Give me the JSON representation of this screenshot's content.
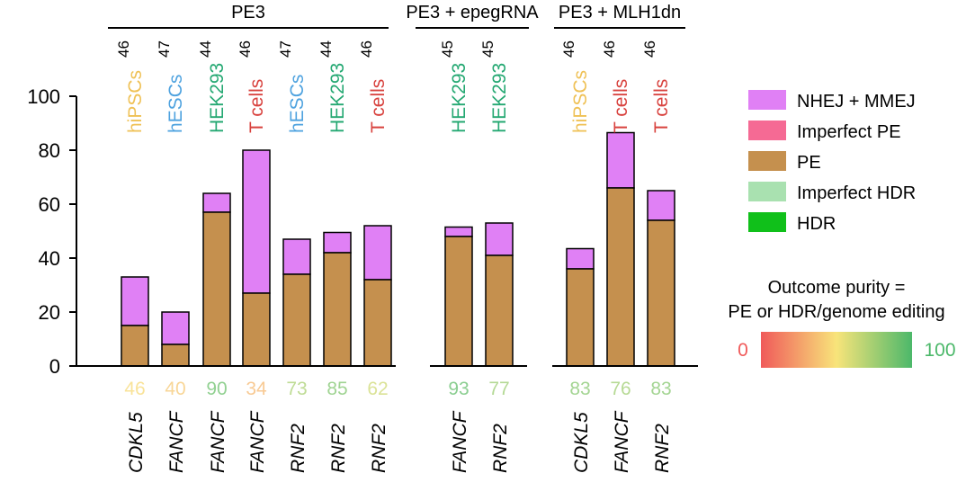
{
  "chart_data": {
    "type": "bar",
    "stacked": true,
    "ylim": [
      0,
      100
    ],
    "yticks": [
      0,
      20,
      40,
      60,
      80,
      100
    ],
    "groups": [
      {
        "label": "PE3"
      },
      {
        "label": "PE3 + epegRNA"
      },
      {
        "label": "PE3 + MLH1dn"
      }
    ],
    "bars": [
      {
        "group": 0,
        "gene": "CDKL5",
        "cell": "hiPSCs",
        "n": "46",
        "purity": "46",
        "pe": 15,
        "nhej": 18
      },
      {
        "group": 0,
        "gene": "FANCF",
        "cell": "hESCs",
        "n": "47",
        "purity": "40",
        "pe": 8,
        "nhej": 12
      },
      {
        "group": 0,
        "gene": "FANCF",
        "cell": "HEK293",
        "n": "44",
        "purity": "90",
        "pe": 57,
        "nhej": 7
      },
      {
        "group": 0,
        "gene": "FANCF",
        "cell": "T cells",
        "n": "46",
        "purity": "34",
        "pe": 27,
        "nhej": 53
      },
      {
        "group": 0,
        "gene": "RNF2",
        "cell": "hESCs",
        "n": "47",
        "purity": "73",
        "pe": 34,
        "nhej": 13
      },
      {
        "group": 0,
        "gene": "RNF2",
        "cell": "HEK293",
        "n": "44",
        "purity": "85",
        "pe": 42,
        "nhej": 7.5
      },
      {
        "group": 0,
        "gene": "RNF2",
        "cell": "T cells",
        "n": "46",
        "purity": "62",
        "pe": 32,
        "nhej": 20
      },
      {
        "group": 1,
        "gene": "FANCF",
        "cell": "HEK293",
        "n": "45",
        "purity": "93",
        "pe": 48,
        "nhej": 3.5
      },
      {
        "group": 1,
        "gene": "RNF2",
        "cell": "HEK293",
        "n": "45",
        "purity": "77",
        "pe": 41,
        "nhej": 12
      },
      {
        "group": 2,
        "gene": "CDKL5",
        "cell": "hiPSCs",
        "n": "46",
        "purity": "83",
        "pe": 36,
        "nhej": 7.5
      },
      {
        "group": 2,
        "gene": "FANCF",
        "cell": "T cells",
        "n": "46",
        "purity": "76",
        "pe": 66,
        "nhej": 20.5
      },
      {
        "group": 2,
        "gene": "RNF2",
        "cell": "T cells",
        "n": "46",
        "purity": "83",
        "pe": 54,
        "nhej": 11
      }
    ],
    "legend": [
      {
        "label": "NHEJ + MMEJ",
        "color": "#e080f5"
      },
      {
        "label": "Imperfect PE",
        "color": "#f56a94"
      },
      {
        "label": "PE",
        "color": "#c5904e"
      },
      {
        "label": "Imperfect HDR",
        "color": "#a9e1b0"
      },
      {
        "label": "HDR",
        "color": "#10c01a"
      }
    ],
    "purity_scale": {
      "title_line1": "Outcome purity =",
      "title_line2": "PE or HDR/genome editing",
      "min_label": "0",
      "max_label": "100",
      "min_color": "#f05a5a",
      "mid_color": "#f8e47a",
      "max_color": "#4cb86a"
    },
    "cell_colors": {
      "hiPSCs": "#efc156",
      "hESCs": "#4ea2df",
      "HEK293": "#24a872",
      "T cells": "#d8423e"
    },
    "stack_colors": {
      "pe": "#c5904e",
      "nhej": "#e080f5"
    }
  }
}
